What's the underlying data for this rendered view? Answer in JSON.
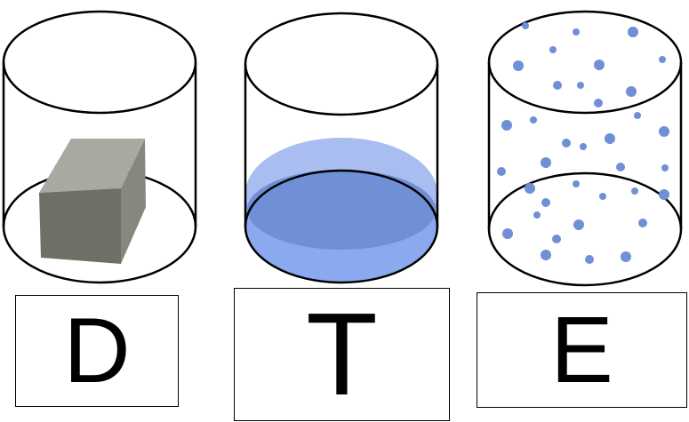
{
  "panels": [
    {
      "id": "solid",
      "state_icon": "solid-block-icon",
      "label": "D"
    },
    {
      "id": "liquid",
      "state_icon": "liquid-icon",
      "label": "T"
    },
    {
      "id": "gas",
      "state_icon": "gas-particles-icon",
      "label": "E"
    }
  ],
  "colors": {
    "outline": "#000000",
    "block_front": "#6f6f66",
    "block_top": "#a9a9a2",
    "block_side": "#878780",
    "liquid_surface": "#6f8fd6",
    "liquid_body": "#8aa9ee",
    "liquid_rim": "#a9bdf0",
    "particle": "#6f8fd6"
  }
}
